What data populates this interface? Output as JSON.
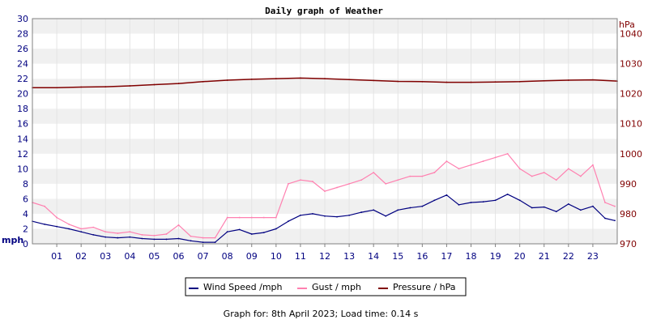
{
  "chart_data": {
    "type": "line",
    "title": "Daily graph of Weather",
    "left_axis": {
      "unit": "mph",
      "ylim": [
        0,
        30
      ],
      "ticks": [
        0,
        2,
        4,
        6,
        8,
        10,
        12,
        14,
        16,
        18,
        20,
        22,
        24,
        26,
        28,
        30
      ],
      "color": "#000080"
    },
    "right_axis": {
      "unit": "hPa",
      "ylim": [
        970,
        1045
      ],
      "ticks": [
        970,
        980,
        990,
        1000,
        1010,
        1020,
        1030,
        1040
      ],
      "color": "#800000"
    },
    "x_ticks": [
      "01",
      "02",
      "03",
      "04",
      "05",
      "06",
      "07",
      "08",
      "09",
      "10",
      "11",
      "12",
      "13",
      "14",
      "15",
      "16",
      "17",
      "18",
      "19",
      "20",
      "21",
      "22",
      "23"
    ],
    "x_range_hours": [
      0,
      24
    ],
    "grid": "horizontal bands",
    "legend_position": "bottom",
    "series": [
      {
        "name": "Wind Speed /mph",
        "axis": "left",
        "color": "#000080",
        "x": [
          0,
          0.5,
          1,
          1.5,
          2,
          2.5,
          3,
          3.5,
          4,
          4.5,
          5,
          5.5,
          6,
          6.5,
          7,
          7.5,
          8,
          8.5,
          9,
          9.5,
          10,
          10.5,
          11,
          11.5,
          12,
          12.5,
          13,
          13.5,
          14,
          14.5,
          15,
          15.5,
          16,
          16.5,
          17,
          17.5,
          18,
          18.5,
          19,
          19.5,
          20,
          20.5,
          21,
          21.5,
          22,
          22.5,
          23,
          23.5,
          23.9
        ],
        "y": [
          3.0,
          2.6,
          2.3,
          2.0,
          1.6,
          1.2,
          0.9,
          0.8,
          0.9,
          0.7,
          0.6,
          0.6,
          0.7,
          0.4,
          0.2,
          0.2,
          1.6,
          1.9,
          1.3,
          1.5,
          2.0,
          3.0,
          3.8,
          4.0,
          3.7,
          3.6,
          3.8,
          4.2,
          4.5,
          3.7,
          4.5,
          4.8,
          5.0,
          5.8,
          6.5,
          5.2,
          5.5,
          5.6,
          5.8,
          6.6,
          5.8,
          4.8,
          4.9,
          4.3,
          5.3,
          4.5,
          5.0,
          3.4,
          3.1
        ]
      },
      {
        "name": "Gust / mph",
        "axis": "left",
        "color": "#ff80b0",
        "x": [
          0,
          0.5,
          1,
          1.5,
          2,
          2.5,
          3,
          3.5,
          4,
          4.5,
          5,
          5.5,
          6,
          6.5,
          7,
          7.5,
          8,
          8.5,
          9,
          9.5,
          10,
          10.5,
          11,
          11.5,
          12,
          12.5,
          13,
          13.5,
          14,
          14.5,
          15,
          15.5,
          16,
          16.5,
          17,
          17.5,
          18,
          18.5,
          19,
          19.5,
          20,
          20.5,
          21,
          21.5,
          22,
          22.5,
          23,
          23.5,
          23.9
        ],
        "y": [
          5.5,
          5.0,
          3.5,
          2.6,
          2.0,
          2.2,
          1.6,
          1.4,
          1.6,
          1.2,
          1.1,
          1.3,
          2.5,
          1.0,
          0.8,
          0.8,
          3.5,
          3.5,
          3.5,
          3.5,
          3.5,
          8.0,
          8.5,
          8.3,
          7.0,
          7.5,
          8.0,
          8.5,
          9.5,
          8.0,
          8.5,
          9.0,
          9.0,
          9.5,
          11.0,
          10.0,
          10.5,
          11.0,
          11.5,
          12.0,
          10.0,
          9.0,
          9.5,
          8.5,
          10.0,
          9.0,
          10.5,
          5.5,
          5.0
        ]
      },
      {
        "name": "Pressure / hPa",
        "axis": "right",
        "color": "#800000",
        "x": [
          0,
          1,
          2,
          3,
          4,
          5,
          6,
          7,
          8,
          9,
          10,
          11,
          12,
          13,
          14,
          15,
          16,
          17,
          18,
          19,
          20,
          21,
          22,
          23,
          24
        ],
        "y": [
          1022.0,
          1022.0,
          1022.2,
          1022.3,
          1022.6,
          1023.0,
          1023.4,
          1024.0,
          1024.5,
          1024.8,
          1025.0,
          1025.2,
          1025.0,
          1024.7,
          1024.4,
          1024.1,
          1024.0,
          1023.8,
          1023.8,
          1023.9,
          1024.0,
          1024.3,
          1024.5,
          1024.6,
          1024.2
        ]
      }
    ]
  },
  "footer": "Graph for: 8th April 2023; Load time: 0.14 s"
}
